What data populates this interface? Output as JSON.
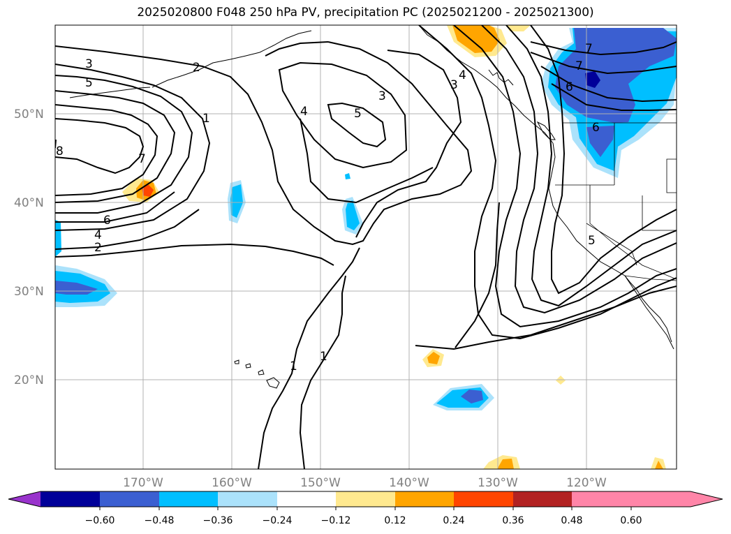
{
  "title": "2025020800 F048 250 hPa PV, precipitation PC (2025021200 - 2025021300)",
  "lat_labels": [
    "50°N",
    "40°N",
    "30°N",
    "20°N"
  ],
  "lon_labels": [
    "170°W",
    "160°W",
    "150°W",
    "140°W",
    "130°W",
    "120°W"
  ],
  "contour_labels": [
    "1",
    "2",
    "3",
    "4",
    "5",
    "6",
    "7",
    "8"
  ],
  "colorbar": {
    "ticks": [
      "−0.60",
      "−0.48",
      "−0.36",
      "−0.24",
      "−0.12",
      "0.12",
      "0.24",
      "0.36",
      "0.48",
      "0.60"
    ],
    "colors": [
      "#9933cc",
      "#000099",
      "#3b5fd1",
      "#00bfff",
      "#abe2fb",
      "#ffffff",
      "#ffe98f",
      "#ffa500",
      "#ff4500",
      "#b22222",
      "#ff85a8"
    ]
  }
}
